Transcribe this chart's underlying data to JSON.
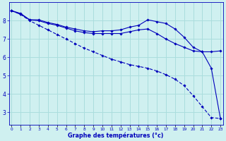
{
  "xlabel": "Graphe des températures (°c)",
  "background_color": "#cff0f0",
  "grid_color": "#aadddd",
  "line_color": "#0000bb",
  "x_hours": [
    0,
    1,
    2,
    3,
    4,
    5,
    6,
    7,
    8,
    9,
    10,
    11,
    12,
    13,
    14,
    15,
    16,
    17,
    18,
    19,
    20,
    21,
    22,
    23
  ],
  "line1": [
    8.55,
    8.4,
    8.05,
    8.05,
    7.9,
    7.8,
    7.65,
    7.55,
    7.45,
    7.4,
    7.45,
    7.45,
    7.5,
    7.65,
    7.75,
    8.05,
    7.95,
    7.85,
    7.55,
    7.1,
    6.55,
    6.3,
    5.4,
    2.65
  ],
  "line2": [
    8.55,
    8.35,
    8.05,
    8.0,
    7.85,
    7.75,
    7.6,
    7.45,
    7.35,
    7.3,
    7.3,
    7.3,
    7.3,
    7.4,
    7.5,
    7.55,
    7.3,
    7.0,
    6.75,
    6.55,
    6.35,
    6.3,
    6.3,
    6.35
  ],
  "line3": [
    8.55,
    8.35,
    8.0,
    7.75,
    7.5,
    7.25,
    7.0,
    6.75,
    6.5,
    6.3,
    6.1,
    5.9,
    5.75,
    5.6,
    5.5,
    5.4,
    5.25,
    5.05,
    4.8,
    4.45,
    3.9,
    3.3,
    2.7,
    2.65
  ],
  "ylim": [
    2.3,
    9.0
  ],
  "yticks": [
    3,
    4,
    5,
    6,
    7,
    8
  ],
  "xlim": [
    -0.3,
    23.3
  ]
}
